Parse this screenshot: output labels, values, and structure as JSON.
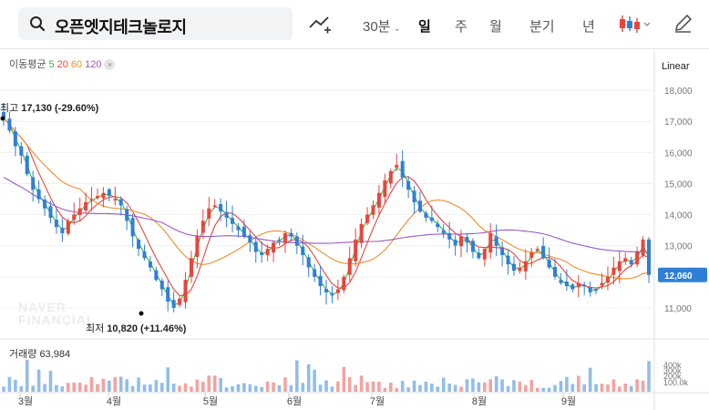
{
  "search": {
    "value": "오픈엣지테크놀로지"
  },
  "toolbar": {
    "interval_30m": "30분",
    "day": "일",
    "week": "주",
    "month": "월",
    "quarter": "분기",
    "year": "년"
  },
  "ma_legend": {
    "label": "이동평균",
    "periods": [
      "5",
      "20",
      "60",
      "120"
    ],
    "colors": [
      "#3cb44b",
      "#e8453c",
      "#f08c2a",
      "#9b59c7"
    ],
    "close": "×"
  },
  "scale": "Linear",
  "annotations": {
    "high": {
      "prefix": "최고",
      "value": "17,130 (-29.60%)"
    },
    "low": {
      "prefix": "최저",
      "value": "10,820 (+11.46%)"
    }
  },
  "price_axis": {
    "ticks": [
      "18,000",
      "17,000",
      "16,000",
      "15,000",
      "14,000",
      "13,000",
      "12,000",
      "11,000"
    ],
    "current": "12,060"
  },
  "volume": {
    "label": "거래량",
    "value": "63,984",
    "ticks": [
      "400k",
      "300k",
      "200k",
      "100.0k"
    ]
  },
  "watermark": [
    "NAVER",
    "FINANCIAL"
  ],
  "months": [
    "3월",
    "4월",
    "5월",
    "6월",
    "7월",
    "8월",
    "9월"
  ],
  "colors": {
    "up": "#e8453c",
    "down": "#2f7fd6",
    "current_badge": "#2f7fd6"
  },
  "chart_data": {
    "type": "candlestick",
    "y_range": [
      10500,
      18500
    ],
    "series_close": [
      17100,
      16700,
      16200,
      15900,
      15300,
      14800,
      14500,
      14200,
      13900,
      13600,
      13400,
      13800,
      14000,
      14200,
      14400,
      14500,
      14600,
      14700,
      14600,
      14500,
      14300,
      13800,
      13300,
      12900,
      12600,
      12300,
      11900,
      11600,
      11200,
      11000,
      11300,
      11900,
      12600,
      13300,
      13800,
      14200,
      14300,
      14100,
      13900,
      13700,
      13500,
      13300,
      13100,
      12800,
      12700,
      12900,
      13100,
      13200,
      13400,
      13300,
      13000,
      12700,
      12300,
      12000,
      11700,
      11500,
      11400,
      11600,
      12000,
      12600,
      13200,
      13700,
      14000,
      14300,
      14700,
      15100,
      15400,
      15600,
      15200,
      14800,
      14400,
      14100,
      13900,
      13800,
      13600,
      13400,
      13200,
      13000,
      13300,
      13100,
      12800,
      12600,
      12900,
      13400,
      13000,
      12700,
      12400,
      12200,
      12300,
      12500,
      12800,
      12900,
      12600,
      12300,
      12000,
      11800,
      11700,
      11600,
      11800,
      11700,
      11500,
      11600,
      11800,
      12000,
      12300,
      12500,
      12600,
      12400,
      12800,
      13200,
      12060
    ],
    "ma": [
      "5",
      "20",
      "60",
      "120"
    ]
  }
}
